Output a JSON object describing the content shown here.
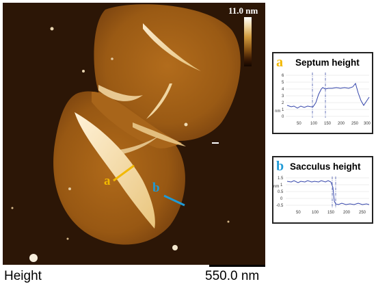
{
  "image": {
    "channel_label": "Height",
    "scale_bar_label": "550.0 nm",
    "colorbar_max_label": "11.0 nm"
  },
  "annotations": {
    "line_a": {
      "letter": "a",
      "color": "#f2b800"
    },
    "line_b": {
      "letter": "b",
      "color": "#1f9ad6"
    }
  },
  "profile_a": {
    "letter": "a",
    "letter_color": "#f2b800",
    "title": "Septum height",
    "y_unit": "nm",
    "y_ticks": [
      "0",
      "1",
      "2",
      "3",
      "4",
      "5",
      "6"
    ],
    "x_ticks": [
      "50",
      "100",
      "150",
      "200",
      "250",
      "300"
    ],
    "line_color": "#3344aa"
  },
  "profile_b": {
    "letter": "b",
    "letter_color": "#1f9ad6",
    "title": "Sacculus height",
    "y_unit": "nm",
    "y_ticks": [
      "1.5",
      "1",
      "0.5",
      "0",
      "-0.5"
    ],
    "x_ticks": [
      "50",
      "100",
      "150",
      "200",
      "250"
    ],
    "line_color": "#3344aa"
  }
}
